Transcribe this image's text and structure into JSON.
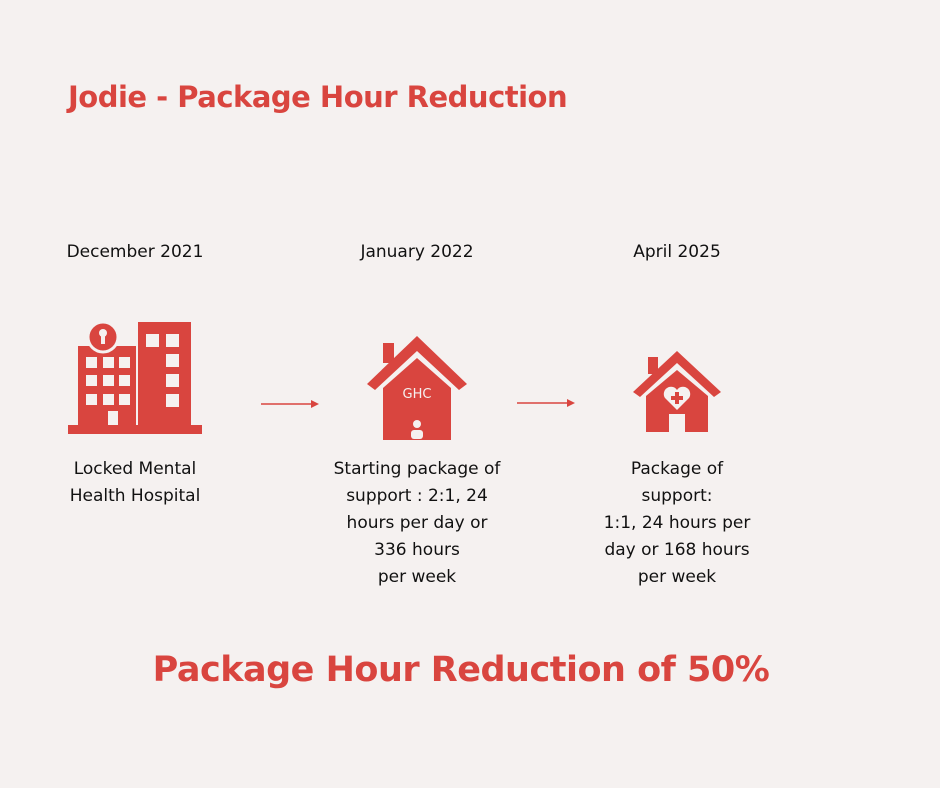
{
  "header": {
    "title": "Jodie - Package Hour Reduction"
  },
  "stages": [
    {
      "date": "December  2021",
      "description": [
        "Locked Mental",
        "Health Hospital"
      ]
    },
    {
      "date": "January 2022",
      "icon_label": "GHC",
      "description": [
        "Starting package of",
        "support : 2:1, 24",
        "hours per day or",
        "336 hours",
        "per week"
      ]
    },
    {
      "date": "April 2025",
      "description": [
        "Package of",
        "support:",
        "1:1, 24 hours per",
        "day or 168 hours",
        "per week"
      ]
    }
  ],
  "footer": {
    "summary": "Package Hour Reduction of 50%"
  }
}
